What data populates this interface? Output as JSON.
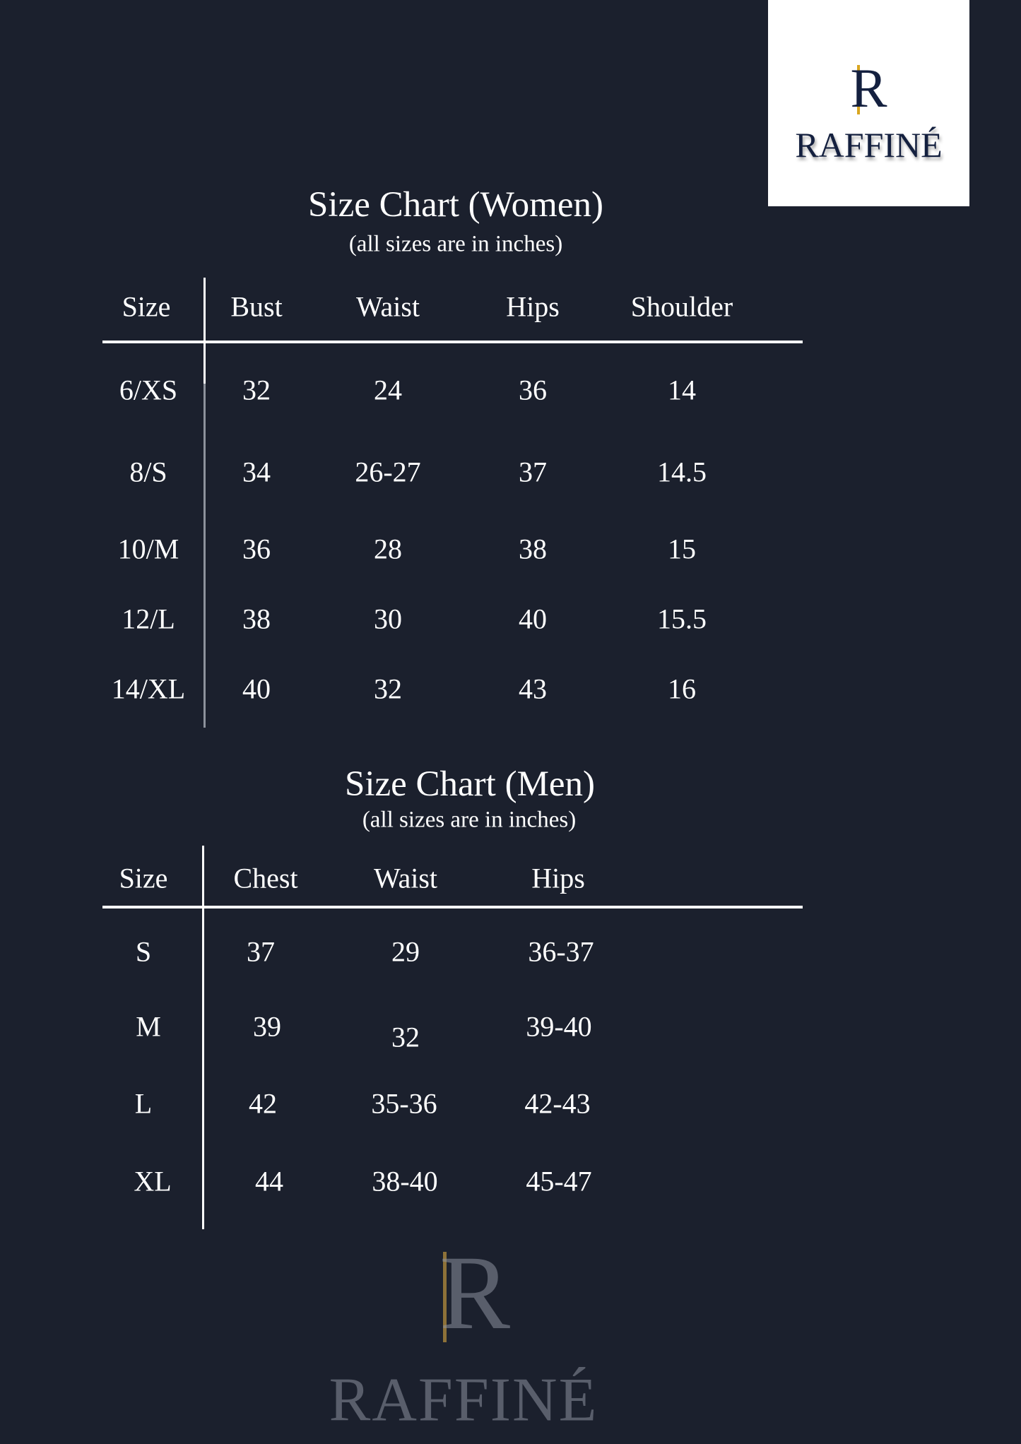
{
  "logo": {
    "monogram": "R",
    "wordmark": "RAFFINÉ",
    "accent_color": "#d9a620",
    "text_color": "#14203f"
  },
  "watermark": {
    "monogram": "R",
    "wordmark": "RAFFINÉ"
  },
  "women": {
    "title": "Size Chart (Women)",
    "subtitle": "(all sizes are in inches)",
    "headers": [
      "Size",
      "Bust",
      "Waist",
      "Hips",
      "Shoulder"
    ],
    "rows": [
      [
        "6/XS",
        "32",
        "24",
        "36",
        "14"
      ],
      [
        "8/S",
        "34",
        "26-27",
        "37",
        "14.5"
      ],
      [
        "10/M",
        "36",
        "28",
        "38",
        "15"
      ],
      [
        "12/L",
        "38",
        "30",
        "40",
        "15.5"
      ],
      [
        "14/XL",
        "40",
        "32",
        "43",
        "16"
      ]
    ]
  },
  "men": {
    "title": "Size Chart (Men)",
    "subtitle": "(all sizes are in inches)",
    "headers": [
      "Size",
      "Chest",
      "Waist",
      "Hips"
    ],
    "rows": [
      [
        "S",
        "37",
        "29",
        "36-37"
      ],
      [
        "M",
        "39",
        "32",
        "39-40"
      ],
      [
        "L",
        "42",
        "35-36",
        "42-43"
      ],
      [
        "XL",
        "44",
        "38-40",
        "45-47"
      ]
    ]
  },
  "colors": {
    "background": "#1b202d",
    "text": "#ffffff"
  }
}
